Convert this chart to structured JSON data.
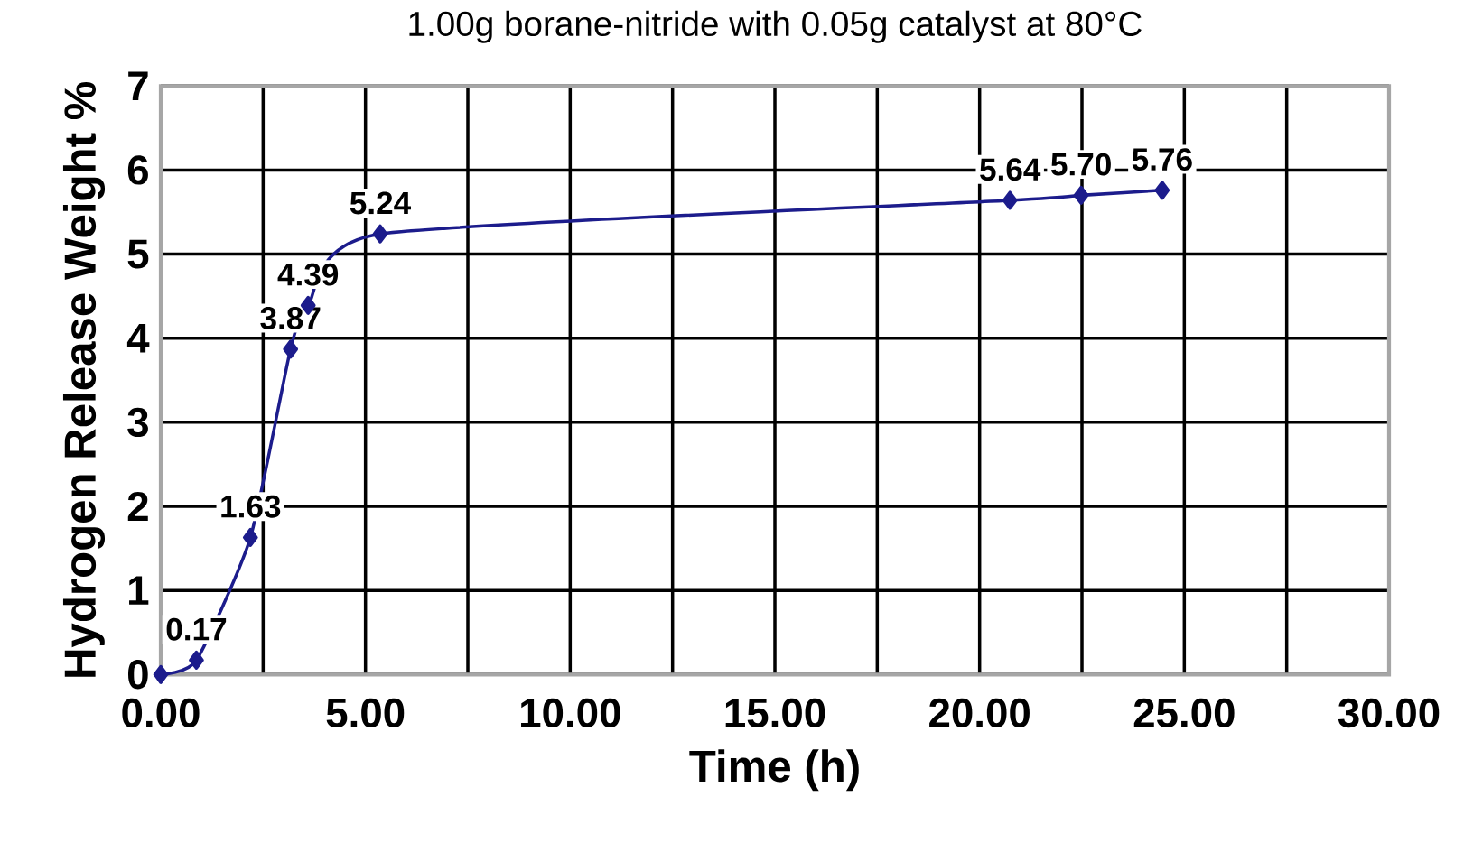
{
  "chart_data": {
    "type": "line",
    "title": "1.00g borane-nitride with 0.05g catalyst at 80°C",
    "xlabel": "Time (h)",
    "ylabel": "Hydrogen Release Weight %",
    "x": [
      0,
      0.87,
      2.19,
      3.17,
      3.6,
      5.36,
      20.74,
      22.48,
      24.46
    ],
    "series": [
      {
        "color": "#1c1c8c",
        "values": [
          0,
          0.17,
          1.63,
          3.87,
          4.39,
          5.24,
          5.64,
          5.7,
          5.76
        ],
        "value_labels": [
          null,
          "0.17",
          "1.63",
          "3.87",
          "4.39",
          "5.24",
          "5.64",
          "5.70",
          "5.76"
        ]
      }
    ],
    "xlim": [
      0,
      30
    ],
    "xticks": [
      {
        "value": 0,
        "label": "0.00"
      },
      {
        "value": 2.5,
        "label": null
      },
      {
        "value": 5,
        "label": "5.00"
      },
      {
        "value": 7.5,
        "label": null
      },
      {
        "value": 10,
        "label": "10.00"
      },
      {
        "value": 12.5,
        "label": null
      },
      {
        "value": 15,
        "label": "15.00"
      },
      {
        "value": 17.5,
        "label": null
      },
      {
        "value": 20,
        "label": "20.00"
      },
      {
        "value": 22.5,
        "label": null
      },
      {
        "value": 25,
        "label": "25.00"
      },
      {
        "value": 27.5,
        "label": null
      },
      {
        "value": 30,
        "label": "30.00"
      }
    ],
    "ylim": [
      0,
      7
    ],
    "yticks": [
      0,
      1,
      2,
      3,
      4,
      5,
      6,
      7
    ],
    "grid": true,
    "marker": "diamond",
    "line_style": "solid"
  }
}
